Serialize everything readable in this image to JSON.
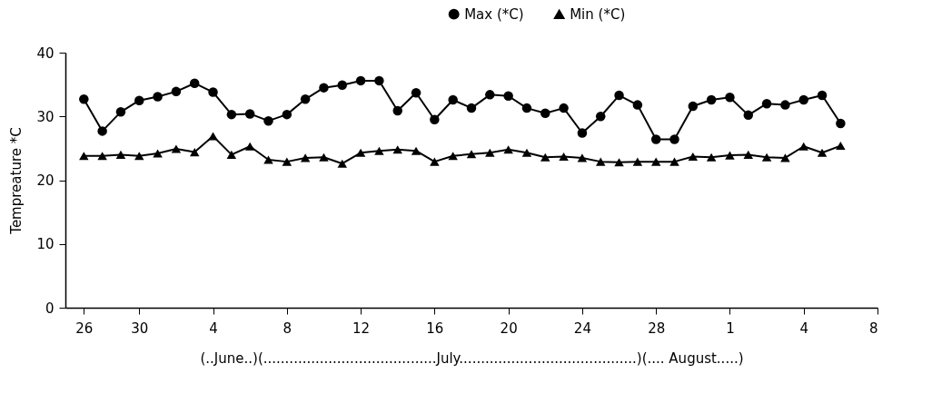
{
  "chart_data": {
    "type": "line",
    "xlabel": "(..June..)(........................................July.........................................)(.... August.....)",
    "ylabel": "Tempreature *C",
    "categories": [
      "26",
      null,
      null,
      "30",
      null,
      null,
      null,
      "4",
      null,
      null,
      null,
      "8",
      null,
      null,
      null,
      "12",
      null,
      null,
      null,
      "16",
      null,
      null,
      null,
      "20",
      null,
      null,
      null,
      "24",
      null,
      null,
      null,
      "28",
      null,
      null,
      null,
      "1",
      null,
      null,
      null,
      "4",
      null,
      null,
      null,
      "8"
    ],
    "series": [
      {
        "name": "Max (*C)",
        "color": "#000000",
        "marker": "circle",
        "values": [
          32.7,
          27.7,
          30.7,
          32.5,
          33.1,
          33.9,
          35.2,
          33.8,
          30.3,
          30.4,
          29.3,
          30.3,
          32.7,
          34.5,
          34.9,
          35.6,
          35.6,
          30.9,
          33.7,
          29.5,
          32.6,
          31.3,
          33.4,
          33.2,
          31.3,
          30.5,
          31.3,
          27.4,
          30.0,
          33.3,
          31.8,
          26.4,
          26.4,
          31.6,
          32.6,
          33.0,
          30.2,
          32.0,
          31.8,
          32.6,
          33.3,
          28.9,
          null,
          null
        ]
      },
      {
        "name": "Min (*C)",
        "color": "#000000",
        "marker": "triangle",
        "values": [
          23.8,
          23.8,
          24.0,
          23.8,
          24.2,
          24.9,
          24.4,
          26.9,
          24.0,
          25.3,
          23.2,
          22.9,
          23.5,
          23.6,
          22.6,
          24.3,
          24.6,
          24.8,
          24.6,
          22.9,
          23.8,
          24.1,
          24.3,
          24.8,
          24.3,
          23.6,
          23.7,
          23.5,
          22.9,
          22.8,
          22.9,
          22.9,
          22.9,
          23.7,
          23.6,
          23.9,
          24.0,
          23.6,
          23.5,
          25.3,
          24.3,
          25.4,
          null,
          null
        ]
      }
    ],
    "ylim": [
      0,
      40
    ],
    "yticks": [
      0,
      10,
      20,
      30,
      40
    ],
    "grid": false,
    "legend": "top right",
    "line_style": "solid"
  }
}
